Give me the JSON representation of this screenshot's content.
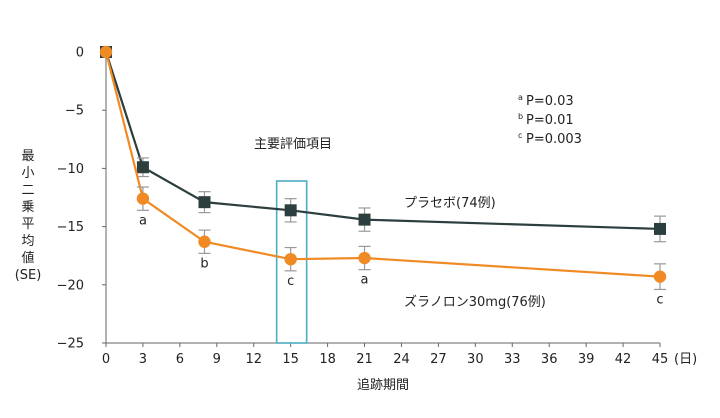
{
  "chart_data": {
    "type": "line",
    "ylabel_lines": [
      "最",
      "小",
      "二",
      "乗",
      "平",
      "均",
      "値",
      "(SE)"
    ],
    "xlabel": "追跡期間",
    "x_unit": "(日)",
    "x_ticks": [
      "0",
      "3",
      "6",
      "9",
      "12",
      "15",
      "18",
      "21",
      "24",
      "27",
      "30",
      "33",
      "36",
      "39",
      "42",
      "45"
    ],
    "y_ticks": [
      "0",
      "−5",
      "−10",
      "−15",
      "−20",
      "−25"
    ],
    "xlim": [
      0,
      45
    ],
    "ylim": [
      -25,
      0
    ],
    "primary_endpoint_label": "主要評価項目",
    "primary_endpoint_day": 15,
    "series": [
      {
        "name": "プラセボ(74例)",
        "color": "#2d3e3e",
        "marker": "square",
        "x": [
          0,
          3,
          8,
          15,
          21,
          45
        ],
        "y": [
          0,
          -9.9,
          -12.9,
          -13.6,
          -14.4,
          -15.2
        ],
        "err": [
          0,
          0.8,
          0.9,
          1.0,
          1.0,
          1.1
        ]
      },
      {
        "name": "ズラノロン30mg(76例)",
        "color": "#f08a24",
        "marker": "circle",
        "x": [
          0,
          3,
          8,
          15,
          21,
          45
        ],
        "y": [
          0,
          -12.6,
          -16.3,
          -17.8,
          -17.7,
          -19.3
        ],
        "err": [
          0,
          1.0,
          1.0,
          1.0,
          1.0,
          1.1
        ],
        "annotations": [
          "",
          "a",
          "b",
          "c",
          "a",
          "c"
        ]
      }
    ],
    "significance_legend": [
      {
        "mark": "a",
        "text": "P=0.03"
      },
      {
        "mark": "b",
        "text": "P=0.01"
      },
      {
        "mark": "c",
        "text": "P=0.003"
      }
    ]
  }
}
